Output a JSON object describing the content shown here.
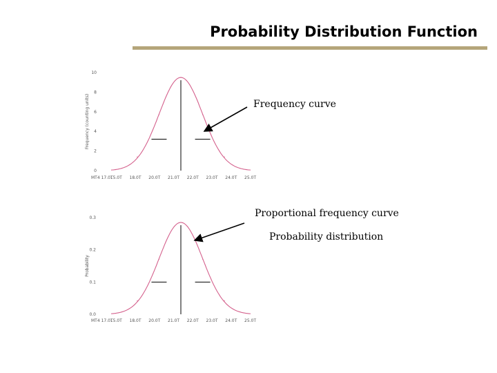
{
  "slide": {
    "title": "Probability Distribution Function",
    "annotations": {
      "frequency_curve": "Frequency curve",
      "proportional_frequency_curve": "Proportional frequency curve",
      "probability_distribution": "Probability distribution"
    }
  },
  "colors": {
    "title_rule": "#b5a57a",
    "curve": "#d4608c",
    "axes": "#555555"
  },
  "chart_data": [
    {
      "type": "line",
      "title": "",
      "xlabel": "",
      "ylabel": "Frequency (counting units)",
      "ylim": [
        0,
        10
      ],
      "yticks": [
        "10",
        "8",
        "6",
        "4",
        "2",
        "0"
      ],
      "ytick_values": [
        10,
        8,
        6,
        4,
        2,
        0
      ],
      "xticks": [
        "MT4 17.0T",
        "15.0T",
        "18.0T",
        "20.0T",
        "21.0T",
        "22.0T",
        "23.0T",
        "24.0T",
        "25.0T"
      ],
      "series": [
        {
          "x": [
            -3,
            -2,
            -1,
            0,
            1,
            2,
            3
          ],
          "y": [
            0.1,
            1.4,
            5.7,
            9.5,
            5.7,
            1.4,
            0.1
          ]
        }
      ],
      "mean_line": {
        "x": 0,
        "y_top": 9.5
      },
      "sd_markers": [
        {
          "x": -1,
          "y": 3.2
        },
        {
          "x": 1,
          "y": 3.2
        }
      ]
    },
    {
      "type": "line",
      "title": "",
      "xlabel": "",
      "ylabel": "Probability",
      "ylim": [
        0,
        0.3
      ],
      "yticks": [
        "0.3",
        "0.2",
        "0.1",
        "0.0"
      ],
      "ytick_values": [
        0.3,
        0.2,
        0.1,
        0.0
      ],
      "xticks": [
        "MT4 17.0T",
        "15.0T",
        "18.0T",
        "20.0T",
        "21.0T",
        "22.0T",
        "23.0T",
        "24.0T",
        "25.0T"
      ],
      "series": [
        {
          "x": [
            -3,
            -2,
            -1,
            0,
            1,
            2,
            3
          ],
          "y": [
            0.003,
            0.042,
            0.171,
            0.285,
            0.171,
            0.042,
            0.003
          ]
        }
      ],
      "mean_line": {
        "x": 0,
        "y_top": 0.285
      },
      "sd_markers": [
        {
          "x": -1,
          "y": 0.1
        },
        {
          "x": 1,
          "y": 0.1
        }
      ]
    }
  ]
}
